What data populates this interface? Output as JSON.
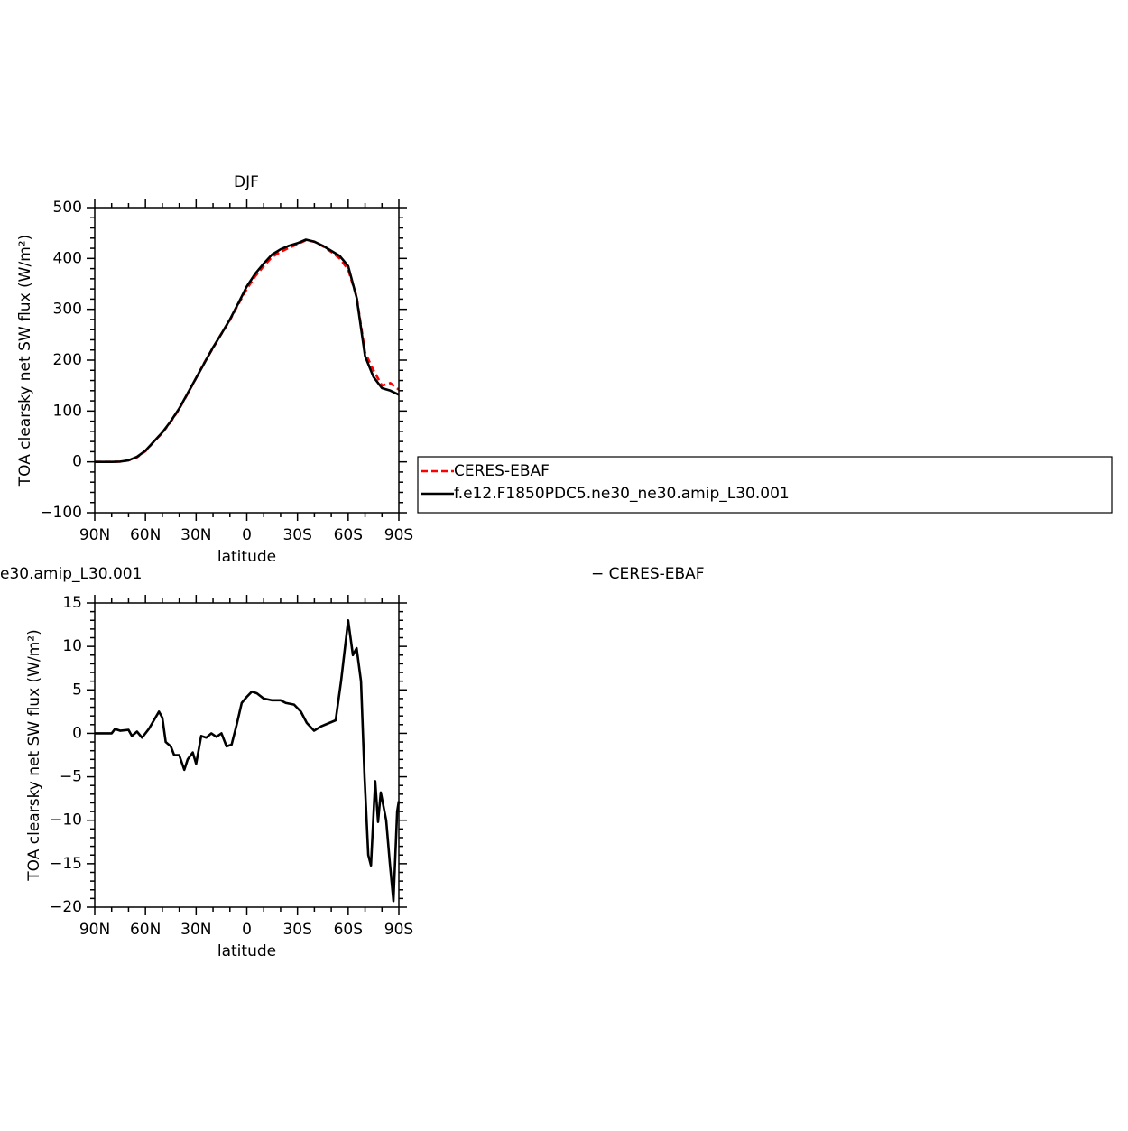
{
  "chart_data": [
    {
      "type": "line",
      "title": "DJF",
      "xlabel": "latitude",
      "ylabel": "TOA clearsky net SW flux (W/m²)",
      "xlim": [
        90,
        -90
      ],
      "xticks": [
        {
          "value": 90,
          "label": "90N"
        },
        {
          "value": 60,
          "label": "60N"
        },
        {
          "value": 30,
          "label": "30N"
        },
        0,
        {
          "value": -30,
          "label": "30S"
        },
        {
          "value": -60,
          "label": "60S"
        },
        {
          "value": -90,
          "label": "90S"
        }
      ],
      "ylim": [
        -100,
        500
      ],
      "yticks": [
        {
          "value": -100,
          "label": "−100"
        },
        0,
        100,
        200,
        300,
        400,
        500
      ],
      "legend": "right",
      "x": [
        90,
        85,
        80,
        75,
        70,
        65,
        60,
        55,
        50,
        45,
        40,
        35,
        30,
        25,
        20,
        15,
        10,
        5,
        0,
        -5,
        -10,
        -15,
        -20,
        -25,
        -30,
        -35,
        -40,
        -45,
        -50,
        -55,
        -60,
        -65,
        -70,
        -75,
        -80,
        -85,
        -90
      ],
      "series": [
        {
          "name": "CERES-EBAF",
          "color": "#ff0000",
          "line_style": "dashed",
          "values": [
            0,
            0,
            0,
            0.5,
            3,
            9,
            21,
            40,
            57,
            79,
            104,
            134,
            165,
            196,
            224,
            252,
            279,
            310,
            340,
            365,
            385,
            403,
            413,
            421,
            428,
            436,
            433,
            424,
            413,
            400,
            378,
            325,
            215,
            180,
            150,
            155,
            142
          ]
        },
        {
          "name": "f.e12.F1850PDC5.ne30_ne30.amip_L30.001",
          "color": "#000000",
          "line_style": "solid",
          "values": [
            0,
            0,
            0,
            0.5,
            3,
            10,
            22,
            40,
            58,
            80,
            105,
            135,
            165,
            195,
            225,
            252,
            280,
            312,
            345,
            370,
            390,
            408,
            418,
            425,
            430,
            437,
            433,
            425,
            415,
            405,
            385,
            323,
            208,
            167,
            145,
            140,
            132
          ]
        }
      ]
    },
    {
      "type": "line",
      "left_title": "e30.amip_L30.001",
      "right_title": "− CERES-EBAF",
      "xlabel": "latitude",
      "ylabel": "TOA clearsky net SW flux (W/m²)",
      "xlim": [
        90,
        -90
      ],
      "xticks": [
        {
          "value": 90,
          "label": "90N"
        },
        {
          "value": 60,
          "label": "60N"
        },
        {
          "value": 30,
          "label": "30N"
        },
        0,
        {
          "value": -30,
          "label": "30S"
        },
        {
          "value": -60,
          "label": "60S"
        },
        {
          "value": -90,
          "label": "90S"
        }
      ],
      "ylim": [
        -20,
        15
      ],
      "yticks": [
        {
          "value": -20,
          "label": "−20"
        },
        {
          "value": -15,
          "label": "−15"
        },
        {
          "value": -10,
          "label": "−10"
        },
        {
          "value": -5,
          "label": "−5"
        },
        0,
        5,
        10,
        15
      ],
      "x": [
        90,
        85,
        80,
        78,
        75,
        70,
        68,
        65,
        62,
        58,
        55,
        52,
        50,
        48,
        45,
        43,
        40,
        37,
        35,
        32,
        30,
        27,
        24,
        21,
        18,
        15,
        12,
        9,
        6,
        3,
        0,
        -3,
        -6,
        -10,
        -15,
        -20,
        -23,
        -28,
        -32,
        -35.5,
        -39.8,
        -44,
        -48.9,
        -52.6,
        -55.8,
        -60,
        -62.8,
        -65,
        -67.6,
        -69.7,
        -71.9,
        -73.5,
        -76,
        -77.7,
        -79.3,
        -82.5,
        -84.7,
        -86.8,
        -89,
        -90
      ],
      "series": [
        {
          "color": "#000000",
          "line_style": "solid",
          "values": [
            0,
            0,
            0,
            0.5,
            0.3,
            0.4,
            -0.3,
            0.2,
            -0.5,
            0.5,
            1.5,
            2.5,
            1.8,
            -1,
            -1.5,
            -2.5,
            -2.5,
            -4.2,
            -3,
            -2.2,
            -3.5,
            -0.3,
            -0.5,
            0,
            -0.4,
            0,
            -1.5,
            -1.3,
            1,
            3.5,
            4.2,
            4.8,
            4.6,
            4,
            3.8,
            3.8,
            3.5,
            3.3,
            2.5,
            1.2,
            0.3,
            0.8,
            1.2,
            1.5,
            6,
            13,
            9,
            9.8,
            6,
            -5,
            -14,
            -15.2,
            -5.5,
            -10.2,
            -6.8,
            -10,
            -15,
            -19.3,
            -9,
            -7.8
          ]
        }
      ]
    }
  ]
}
